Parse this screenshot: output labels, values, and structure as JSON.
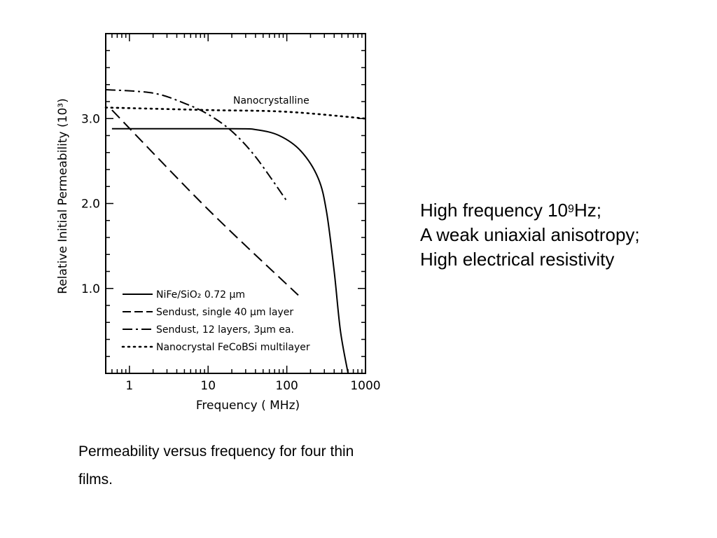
{
  "chart_data": {
    "type": "line",
    "xscale": "log",
    "xlim": [
      0.5,
      1000
    ],
    "ylim": [
      0,
      4.0
    ],
    "xlabel": "Frequency ( MHz)",
    "ylabel": "Relative Initial Permeability (10³)",
    "x_ticks": [
      "1",
      "10",
      "100",
      "1000"
    ],
    "y_ticks": [
      "1.0",
      "2.0",
      "3.0"
    ],
    "annotation": "Nanocrystalline",
    "legend": [
      "NiFe/SiO₂ 0.72 μm",
      "Sendust, single 40 μm layer",
      "Sendust, 12 layers, 3μm ea.",
      "Nanocrystal FeCoBSi multilayer"
    ],
    "series": [
      {
        "style": "solid",
        "x": [
          0.6,
          20,
          40,
          80,
          150,
          250,
          320,
          400,
          480,
          600
        ],
        "y": [
          2.88,
          2.88,
          2.87,
          2.8,
          2.62,
          2.3,
          1.9,
          1.2,
          0.5,
          0.0
        ]
      },
      {
        "style": "dashed",
        "x": [
          0.6,
          10,
          140
        ],
        "y": [
          3.1,
          1.93,
          0.92
        ]
      },
      {
        "style": "dashdot",
        "x": [
          0.5,
          2,
          5,
          10,
          20,
          40,
          100
        ],
        "y": [
          3.34,
          3.3,
          3.18,
          3.05,
          2.85,
          2.55,
          2.03
        ]
      },
      {
        "style": "dotted",
        "x": [
          0.5,
          10,
          100,
          1000
        ],
        "y": [
          3.13,
          3.1,
          3.08,
          3.0
        ]
      }
    ]
  },
  "notes": {
    "line1_before": "High frequency 10",
    "line1_sup": "9",
    "line1_after": "Hz;",
    "line2": "A weak uniaxial anisotropy;",
    "line3": "High electrical resistivity"
  },
  "caption": "Permeability versus frequency for four thin films."
}
